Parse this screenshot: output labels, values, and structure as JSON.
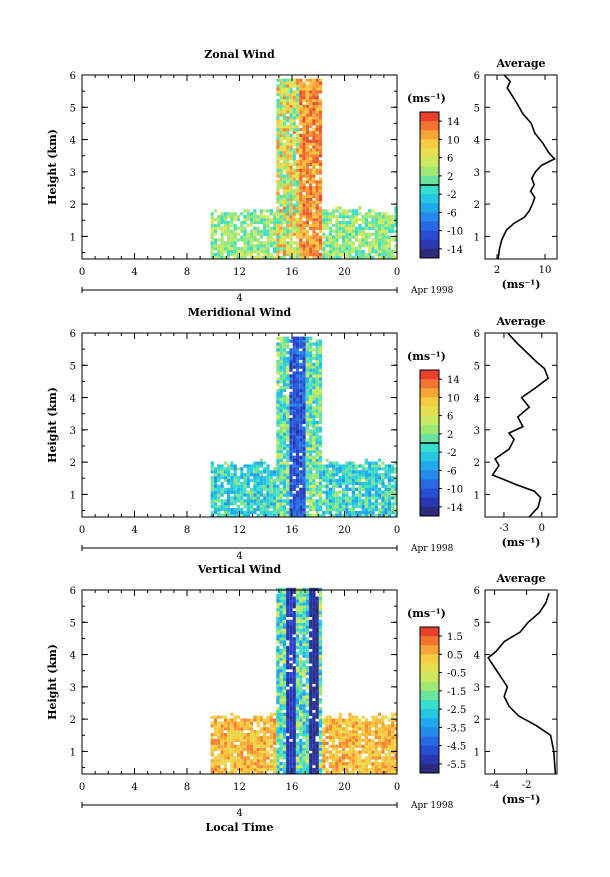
{
  "chart_data": [
    {
      "type": "heatmap",
      "title": "Zonal Wind",
      "ylabel": "Height (km)",
      "y_ticks": [
        "1",
        "2",
        "3",
        "4",
        "5",
        "6"
      ],
      "ylim": [
        0.3,
        6
      ],
      "x_ticks": [
        "0",
        "4",
        "8",
        "12",
        "16",
        "20",
        "0"
      ],
      "xlim": [
        0,
        24
      ],
      "date_label": "4",
      "date_suffix": "Apr 1998",
      "colorbar": {
        "units": "(ms⁻¹)",
        "tick_labels": [
          "14",
          "10",
          "6",
          "2",
          "-2",
          "-6",
          "-10",
          "-14"
        ],
        "range": [
          -16,
          16
        ],
        "marked_level": 0
      },
      "data_region": {
        "x_start": 9.8,
        "x_end": 24,
        "core_start": 14.7,
        "core_end": 18.2,
        "core_top": 5.8,
        "base_top": 1.6
      },
      "profile": {
        "title": "Average",
        "x_ticks": [
          "2",
          "10"
        ],
        "xlim": [
          0,
          12
        ],
        "xlabel": "(ms⁻¹)",
        "points": [
          [
            2.2,
            0.3
          ],
          [
            2.4,
            0.6
          ],
          [
            2.8,
            0.9
          ],
          [
            3.6,
            1.2
          ],
          [
            4.8,
            1.4
          ],
          [
            6.6,
            1.6
          ],
          [
            7.4,
            1.8
          ],
          [
            7.9,
            2.0
          ],
          [
            8.3,
            2.2
          ],
          [
            7.6,
            2.4
          ],
          [
            8.2,
            2.6
          ],
          [
            7.8,
            2.8
          ],
          [
            8.4,
            3.0
          ],
          [
            9.4,
            3.2
          ],
          [
            11.6,
            3.4
          ],
          [
            10.6,
            3.6
          ],
          [
            9.6,
            3.9
          ],
          [
            8.3,
            4.2
          ],
          [
            7.7,
            4.5
          ],
          [
            6.3,
            4.8
          ],
          [
            5.4,
            5.1
          ],
          [
            4.4,
            5.4
          ],
          [
            3.7,
            5.6
          ],
          [
            4.2,
            5.8
          ],
          [
            3.2,
            6.0
          ]
        ]
      }
    },
    {
      "type": "heatmap",
      "title": "Meridional Wind",
      "ylabel": "Height (km)",
      "y_ticks": [
        "1",
        "2",
        "3",
        "4",
        "5",
        "6"
      ],
      "ylim": [
        0.3,
        6
      ],
      "x_ticks": [
        "0",
        "4",
        "8",
        "12",
        "16",
        "20",
        "0"
      ],
      "xlim": [
        0,
        24
      ],
      "date_label": "4",
      "date_suffix": "Apr 1998",
      "colorbar": {
        "units": "(ms⁻¹)",
        "tick_labels": [
          "14",
          "10",
          "6",
          "2",
          "-2",
          "-6",
          "-10",
          "-14"
        ],
        "range": [
          -16,
          16
        ],
        "marked_level": 0
      },
      "data_region": {
        "x_start": 9.8,
        "x_end": 24,
        "core_start": 14.7,
        "core_end": 18.2,
        "core_top": 5.8,
        "base_top": 1.8
      },
      "profile": {
        "title": "Average",
        "x_ticks": [
          "-3",
          "0"
        ],
        "xlim": [
          -4.5,
          1.2
        ],
        "xlabel": "(ms⁻¹)",
        "points": [
          [
            -1.0,
            0.3
          ],
          [
            -0.3,
            0.6
          ],
          [
            -0.1,
            0.9
          ],
          [
            -0.6,
            1.1
          ],
          [
            -2.0,
            1.3
          ],
          [
            -3.9,
            1.6
          ],
          [
            -3.4,
            1.9
          ],
          [
            -3.7,
            2.1
          ],
          [
            -2.6,
            2.4
          ],
          [
            -2.2,
            2.7
          ],
          [
            -2.6,
            2.9
          ],
          [
            -1.5,
            3.1
          ],
          [
            -1.9,
            3.4
          ],
          [
            -1.0,
            3.7
          ],
          [
            -1.6,
            4.0
          ],
          [
            -0.5,
            4.3
          ],
          [
            0.5,
            4.6
          ],
          [
            0.2,
            4.9
          ],
          [
            -0.4,
            5.1
          ],
          [
            -1.2,
            5.4
          ],
          [
            -2.0,
            5.7
          ],
          [
            -2.7,
            6.0
          ]
        ]
      }
    },
    {
      "type": "heatmap",
      "title": "Vertical Wind",
      "ylabel": "Height (km)",
      "xlabel": "Local Time",
      "y_ticks": [
        "1",
        "2",
        "3",
        "4",
        "5",
        "6"
      ],
      "ylim": [
        0.3,
        6
      ],
      "x_ticks": [
        "0",
        "4",
        "8",
        "12",
        "16",
        "20",
        "0"
      ],
      "xlim": [
        0,
        24
      ],
      "date_label": "4",
      "date_suffix": "Apr 1998",
      "colorbar": {
        "units": "(ms⁻¹)",
        "tick_labels": [
          "1.5",
          "0.5",
          "-0.5",
          "-1.5",
          "-2.5",
          "-3.5",
          "-4.5",
          "-5.5"
        ],
        "range": [
          -6,
          2
        ]
      },
      "data_region": {
        "x_start": 9.8,
        "x_end": 24,
        "core_start": 14.7,
        "core_end": 18.2,
        "core_top": 6.0,
        "base_top": 1.9
      },
      "profile": {
        "title": "Average",
        "x_ticks": [
          "-4",
          "-2"
        ],
        "xlim": [
          -4.6,
          -0.1
        ],
        "xlabel": "(ms⁻¹)",
        "points": [
          [
            -0.2,
            0.3
          ],
          [
            -0.3,
            1.0
          ],
          [
            -0.5,
            1.5
          ],
          [
            -1.4,
            1.8
          ],
          [
            -2.5,
            2.1
          ],
          [
            -3.1,
            2.4
          ],
          [
            -3.4,
            2.7
          ],
          [
            -3.2,
            3.0
          ],
          [
            -3.6,
            3.3
          ],
          [
            -4.0,
            3.6
          ],
          [
            -4.4,
            3.9
          ],
          [
            -3.9,
            4.1
          ],
          [
            -3.4,
            4.4
          ],
          [
            -2.4,
            4.7
          ],
          [
            -1.9,
            5.0
          ],
          [
            -1.2,
            5.3
          ],
          [
            -0.8,
            5.6
          ],
          [
            -0.6,
            5.9
          ]
        ]
      }
    }
  ]
}
